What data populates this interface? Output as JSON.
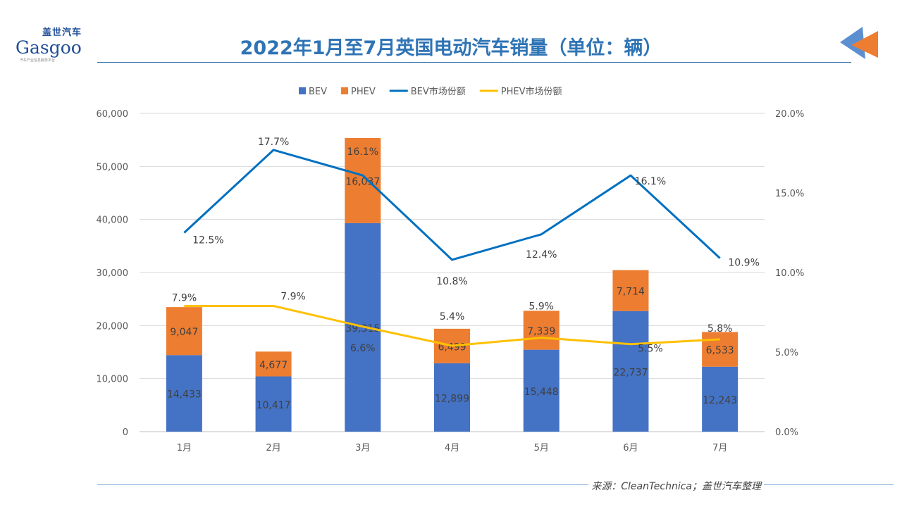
{
  "header": {
    "title": "2022年1月至7月英国电动汽车销量（单位：辆）",
    "logo_cn": "盖世汽车",
    "logo_en": "Gasgoo",
    "logo_sub": "汽车产业信息服务平台"
  },
  "footer": {
    "source": "来源：CleanTechnica；盖世汽车整理"
  },
  "colors": {
    "bev": "#4472c4",
    "phev": "#ed7d31",
    "bev_share": "#0070c0",
    "phev_share": "#ffc000",
    "title": "#2f74b5"
  },
  "chart_data": {
    "type": "bar",
    "stacked": true,
    "categories": [
      "1月",
      "2月",
      "3月",
      "4月",
      "5月",
      "6月",
      "7月"
    ],
    "series": [
      {
        "name": "BEV",
        "type": "bar",
        "axis": "left",
        "values": [
          14433,
          10417,
          39315,
          12899,
          15448,
          22737,
          12243
        ],
        "labels": [
          "14,433",
          "10,417",
          "39,315",
          "12,899",
          "15,448",
          "22,737",
          "12,243"
        ]
      },
      {
        "name": "PHEV",
        "type": "bar",
        "axis": "left",
        "values": [
          9047,
          4677,
          16037,
          6499,
          7339,
          7714,
          6533
        ],
        "labels": [
          "9,047",
          "4,677",
          "16,037",
          "6,499",
          "7,339",
          "7,714",
          "6,533"
        ]
      },
      {
        "name": "BEV市场份额",
        "type": "line",
        "axis": "right",
        "values": [
          12.5,
          17.7,
          16.1,
          10.8,
          12.4,
          16.1,
          10.9
        ],
        "labels": [
          "12.5%",
          "17.7%",
          "16.1%",
          "10.8%",
          "12.4%",
          "16.1%",
          "10.9%"
        ]
      },
      {
        "name": "PHEV市场份额",
        "type": "line",
        "axis": "right",
        "values": [
          7.9,
          7.9,
          6.6,
          5.4,
          5.9,
          5.5,
          5.8
        ],
        "labels": [
          "7.9%",
          "7.9%",
          "6.6%",
          "5.4%",
          "5.9%",
          "5.5%",
          "5.8%"
        ]
      }
    ],
    "left_axis": {
      "ylim": [
        0,
        60000
      ],
      "ticks": [
        "0",
        "10,000",
        "20,000",
        "30,000",
        "40,000",
        "50,000",
        "60,000"
      ]
    },
    "right_axis": {
      "ylim": [
        0,
        20
      ],
      "ticks": [
        "0.0%",
        "5.0%",
        "10.0%",
        "15.0%",
        "20.0%"
      ]
    },
    "grid": true,
    "legend": "top"
  }
}
